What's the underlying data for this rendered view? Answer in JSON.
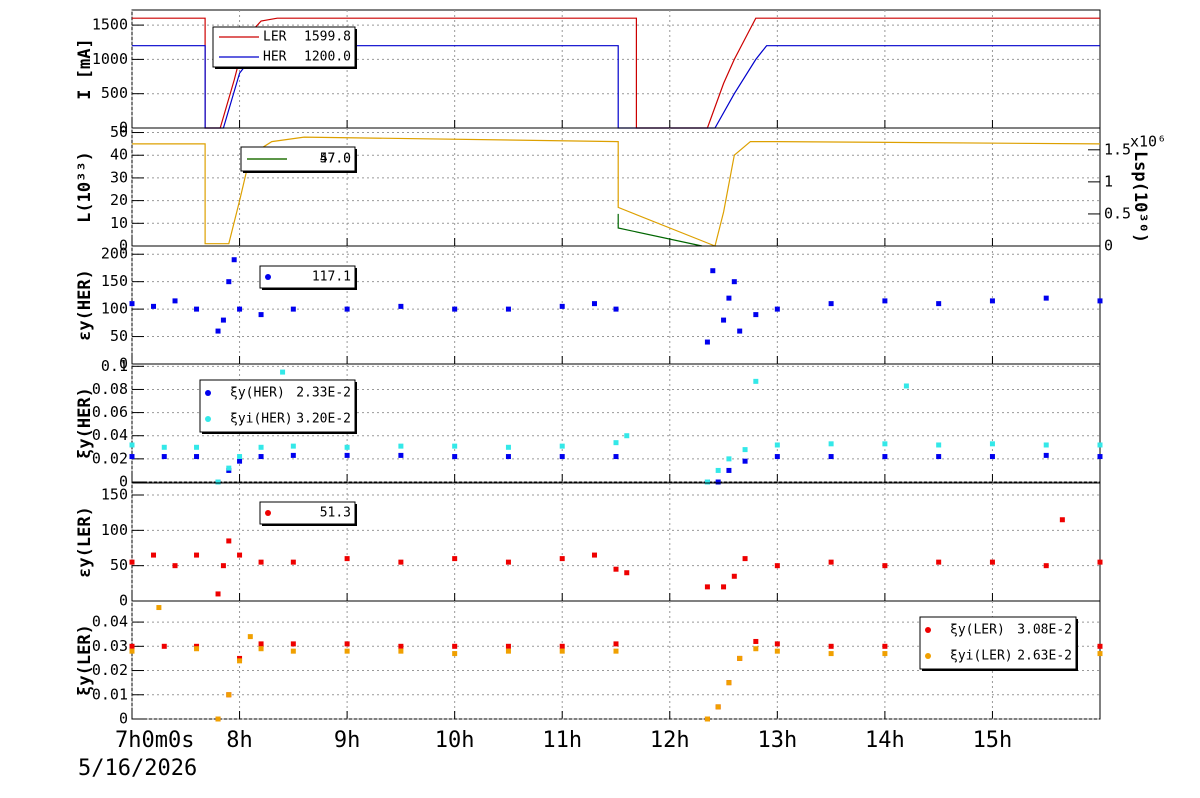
{
  "chart_data": [
    {
      "type": "line",
      "ylabel": "I [mA]",
      "xlim": [
        7,
        16
      ],
      "ylim": [
        0,
        1720
      ],
      "yticks": [
        0,
        500,
        1000,
        1500
      ],
      "grid": true,
      "series": [
        {
          "name": "LER",
          "legend_value": "1599.8",
          "color": "#cc0000",
          "x": [
            7,
            7.68,
            7.68,
            7.82,
            7.95,
            8.05,
            8.2,
            8.35,
            11.69,
            11.69,
            12.35,
            12.5,
            12.6,
            12.75,
            12.8,
            16
          ],
          "values": [
            1600,
            1600,
            0,
            0,
            700,
            1300,
            1560,
            1600,
            1600,
            0,
            0,
            650,
            1000,
            1450,
            1600,
            1600
          ]
        },
        {
          "name": "HER",
          "legend_value": "1200.0",
          "color": "#0000cc",
          "x": [
            7,
            7.68,
            7.68,
            7.85,
            8.0,
            8.15,
            8.25,
            11.52,
            11.52,
            12.42,
            12.6,
            12.8,
            12.9,
            16
          ],
          "values": [
            1200,
            1200,
            0,
            0,
            800,
            1100,
            1200,
            1200,
            0,
            0,
            500,
            1000,
            1200,
            1200
          ]
        }
      ]
    },
    {
      "type": "line",
      "ylabel": "L(10³³)",
      "y2label": "Lsp(10³⁰)",
      "y2multiplier": "x10⁶",
      "xlim": [
        7,
        16
      ],
      "ylim": [
        0,
        52
      ],
      "yticks": [
        0,
        10,
        20,
        30,
        40,
        50
      ],
      "y2lim": [
        0,
        1.84
      ],
      "y2ticks": [
        0,
        0.5,
        1,
        1.5
      ],
      "grid": true,
      "series": [
        {
          "legend_value": "47.0",
          "color": "#dda000",
          "x": [
            7,
            7.68,
            7.68,
            7.9,
            8.0,
            8.1,
            8.3,
            8.6,
            11.52,
            11.52,
            12.42,
            12.5,
            12.6,
            12.75,
            13,
            16
          ],
          "values": [
            45,
            45,
            1,
            1,
            20,
            40,
            46,
            48,
            46,
            17,
            0,
            15,
            40,
            46,
            46,
            45
          ]
        },
        {
          "legend_value": "57.0",
          "color": "#006600",
          "axis": "y2",
          "x": [
            11.52,
            11.52,
            12.3
          ],
          "values": [
            0.5,
            0.28,
            0
          ]
        }
      ]
    },
    {
      "type": "scatter",
      "ylabel": "εy(HER)",
      "xlim": [
        7,
        16
      ],
      "ylim": [
        0,
        215
      ],
      "yticks": [
        0,
        50,
        100,
        150,
        200
      ],
      "grid": true,
      "series": [
        {
          "legend_value": "117.1",
          "color": "#0000ee",
          "x": [
            7.0,
            7.2,
            7.4,
            7.6,
            7.8,
            7.85,
            7.9,
            7.95,
            8.0,
            8.2,
            8.5,
            9.0,
            9.5,
            10.0,
            10.5,
            11.0,
            11.3,
            11.5,
            12.35,
            12.4,
            12.5,
            12.55,
            12.6,
            12.65,
            12.8,
            13.0,
            13.5,
            14.0,
            14.5,
            15.0,
            15.5,
            16.0
          ],
          "values": [
            110,
            105,
            115,
            100,
            60,
            80,
            150,
            190,
            100,
            90,
            100,
            100,
            105,
            100,
            100,
            105,
            110,
            100,
            40,
            170,
            80,
            120,
            150,
            60,
            90,
            100,
            110,
            115,
            110,
            115,
            120,
            115
          ]
        }
      ]
    },
    {
      "type": "scatter",
      "ylabel": "ξy(HER)",
      "xlim": [
        7,
        16
      ],
      "ylim": [
        0,
        0.102
      ],
      "yticks": [
        0,
        0.02,
        0.04,
        0.06,
        0.08,
        0.1
      ],
      "grid": true,
      "series": [
        {
          "name": "ξy(HER)",
          "legend_value": "2.33E-2",
          "color": "#0000ee",
          "x": [
            7.0,
            7.3,
            7.6,
            7.8,
            7.9,
            8.0,
            8.2,
            8.5,
            9,
            9.5,
            10,
            10.5,
            11,
            11.5,
            12.35,
            12.45,
            12.55,
            12.7,
            13,
            13.5,
            14,
            14.5,
            15,
            15.5,
            16
          ],
          "values": [
            0.022,
            0.022,
            0.022,
            0.0,
            0.01,
            0.018,
            0.022,
            0.023,
            0.023,
            0.023,
            0.022,
            0.022,
            0.022,
            0.022,
            0.0,
            0.0,
            0.01,
            0.018,
            0.022,
            0.022,
            0.022,
            0.022,
            0.022,
            0.023,
            0.022
          ]
        },
        {
          "name": "ξyi(HER)",
          "legend_value": "3.20E-2",
          "color": "#33e8e8",
          "x": [
            7,
            7.3,
            7.6,
            7.8,
            7.9,
            8.0,
            8.2,
            8.4,
            8.5,
            9,
            9.5,
            10,
            10.5,
            11,
            11.5,
            11.6,
            12.35,
            12.45,
            12.55,
            12.7,
            12.8,
            13,
            13.5,
            14,
            14.2,
            14.5,
            15,
            15.5,
            16
          ],
          "values": [
            0.032,
            0.03,
            0.03,
            0.0,
            0.012,
            0.022,
            0.03,
            0.095,
            0.031,
            0.03,
            0.031,
            0.031,
            0.03,
            0.031,
            0.034,
            0.04,
            0.0,
            0.01,
            0.02,
            0.028,
            0.087,
            0.032,
            0.033,
            0.033,
            0.083,
            0.032,
            0.033,
            0.032,
            0.032
          ]
        }
      ]
    },
    {
      "type": "scatter",
      "ylabel": "εy(LER)",
      "xlim": [
        7,
        16
      ],
      "ylim": [
        0,
        167
      ],
      "yticks": [
        0,
        50,
        100,
        150
      ],
      "grid": true,
      "series": [
        {
          "legend_value": "51.3",
          "color": "#ee0000",
          "x": [
            7,
            7.2,
            7.4,
            7.6,
            7.8,
            7.85,
            7.9,
            8.0,
            8.2,
            8.5,
            9,
            9.5,
            10,
            10.5,
            11,
            11.3,
            11.5,
            11.6,
            12.35,
            12.5,
            12.6,
            12.7,
            13,
            13.5,
            14,
            14.5,
            15,
            15.5,
            15.65,
            16
          ],
          "values": [
            55,
            65,
            50,
            65,
            10,
            50,
            85,
            65,
            55,
            55,
            60,
            55,
            60,
            55,
            60,
            65,
            45,
            40,
            20,
            20,
            35,
            60,
            50,
            55,
            50,
            55,
            55,
            50,
            115,
            55
          ]
        }
      ]
    },
    {
      "type": "scatter",
      "ylabel": "ξy(LER)",
      "xlim": [
        7,
        16
      ],
      "ylim": [
        0,
        0.0487
      ],
      "yticks": [
        0,
        0.01,
        0.02,
        0.03,
        0.04
      ],
      "grid": true,
      "xticks": [
        {
          "value": 7,
          "label": "7h0m0s"
        },
        {
          "value": 8,
          "label": "8h"
        },
        {
          "value": 9,
          "label": "9h"
        },
        {
          "value": 10,
          "label": "10h"
        },
        {
          "value": 11,
          "label": "11h"
        },
        {
          "value": 12,
          "label": "12h"
        },
        {
          "value": 13,
          "label": "13h"
        },
        {
          "value": 14,
          "label": "14h"
        },
        {
          "value": 15,
          "label": "15h"
        }
      ],
      "date": "5/16/2026",
      "series": [
        {
          "name": "ξy(LER)",
          "legend_value": "3.08E-2",
          "color": "#ee0000",
          "x": [
            7,
            7.3,
            7.6,
            7.8,
            7.9,
            8.0,
            8.2,
            8.5,
            9,
            9.5,
            10,
            10.5,
            11,
            11.5,
            12.35,
            12.45,
            12.55,
            12.65,
            12.8,
            13,
            13.5,
            14,
            14.5,
            15,
            15.5,
            16
          ],
          "values": [
            0.03,
            0.03,
            0.03,
            0,
            0.01,
            0.025,
            0.031,
            0.031,
            0.031,
            0.03,
            0.03,
            0.03,
            0.03,
            0.031,
            0,
            0.005,
            0.015,
            0.025,
            0.032,
            0.031,
            0.03,
            0.03,
            0.03,
            0.03,
            0.031,
            0.03
          ]
        },
        {
          "name": "ξyi(LER)",
          "legend_value": "2.63E-2",
          "color": "#f0a000",
          "x": [
            7,
            7.25,
            7.6,
            7.8,
            7.9,
            8.0,
            8.1,
            8.2,
            8.5,
            9,
            9.5,
            10,
            10.5,
            11,
            11.5,
            12.35,
            12.45,
            12.55,
            12.65,
            12.8,
            13,
            13.5,
            14,
            14.5,
            15,
            15.5,
            16
          ],
          "values": [
            0.028,
            0.046,
            0.029,
            0,
            0.01,
            0.024,
            0.034,
            0.029,
            0.028,
            0.028,
            0.028,
            0.027,
            0.028,
            0.028,
            0.028,
            0,
            0.005,
            0.015,
            0.025,
            0.029,
            0.028,
            0.027,
            0.027,
            0.026,
            0.027,
            0.026,
            0.027
          ]
        }
      ]
    }
  ]
}
